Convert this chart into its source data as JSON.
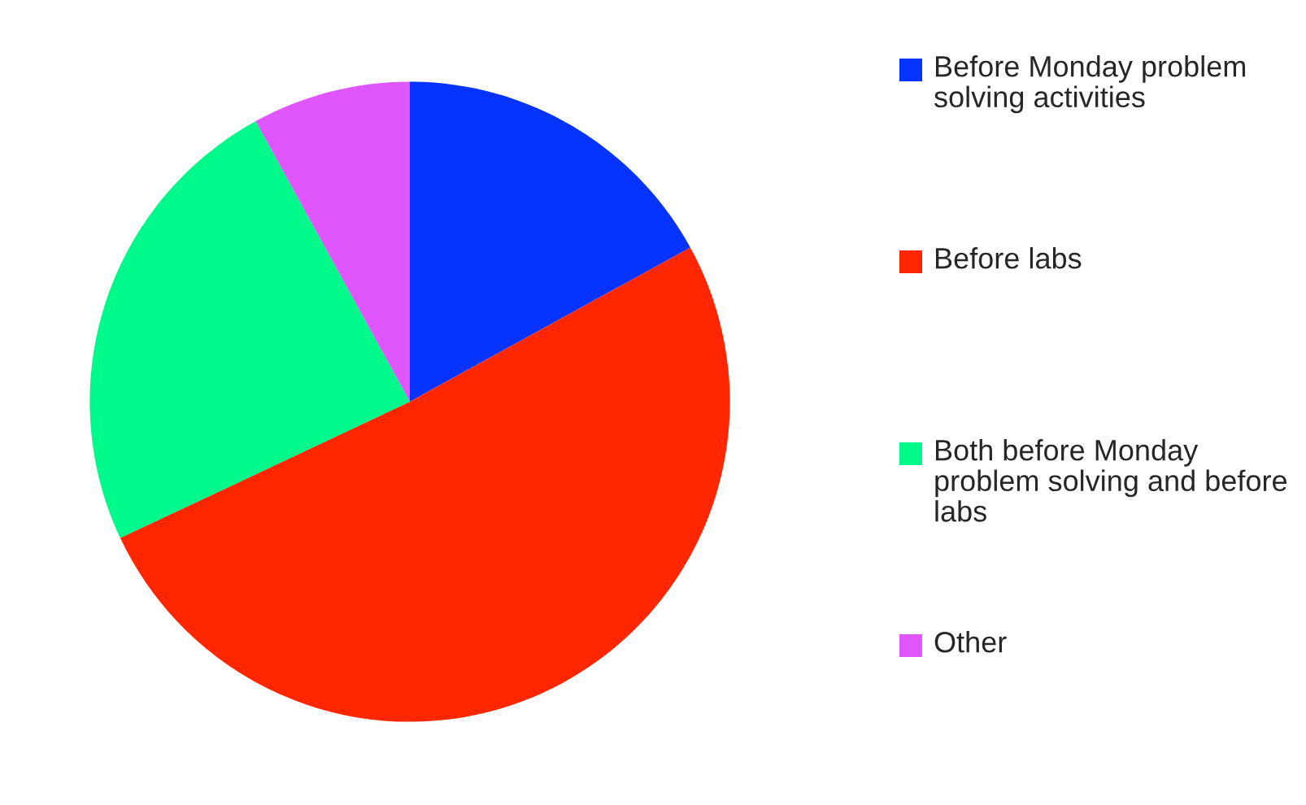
{
  "chart_data": {
    "type": "pie",
    "categories": [
      "Before Monday problem solving activities",
      "Before labs",
      "Both before Monday problem solving and before labs",
      "Other"
    ],
    "values": [
      17,
      51,
      24,
      8
    ],
    "colors": [
      "#0433ff",
      "#ff2600",
      "#00f98b",
      "#e056fd"
    ],
    "legend": "right"
  }
}
